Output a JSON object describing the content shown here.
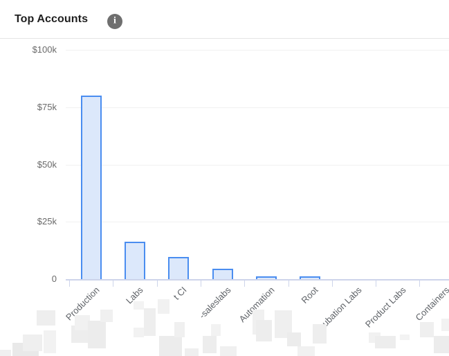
{
  "header": {
    "title": "Top Accounts",
    "info_icon_glyph": "i"
  },
  "chart_data": {
    "type": "bar",
    "title": "Top Accounts",
    "categories": [
      "Production",
      "Labs",
      "t CI",
      "-saleslabs",
      "Automation",
      "Root",
      "Incubation Labs",
      "Product Labs",
      "Containers"
    ],
    "values": [
      80000,
      16300,
      9700,
      4500,
      1100,
      1300,
      0,
      0,
      0
    ],
    "xlabel": "",
    "ylabel": "",
    "ylim": [
      0,
      100000
    ],
    "y_ticks": {
      "labels": [
        "$100k",
        "$75k",
        "$50k",
        "$25k",
        "0"
      ],
      "values": [
        100000,
        75000,
        50000,
        25000,
        0
      ]
    },
    "grid": true,
    "legend": false,
    "annotations": "leading portions of several account names are pixelated out",
    "colors": {
      "bar_fill": "#dce8fb",
      "bar_border": "#4a8df0",
      "axis": "#cdd4ea",
      "gridline": "#f1f1f1",
      "tick_label": "#6a6a6a",
      "title": "#1f1f1f",
      "info_icon_bg": "#6f6f6f"
    }
  }
}
